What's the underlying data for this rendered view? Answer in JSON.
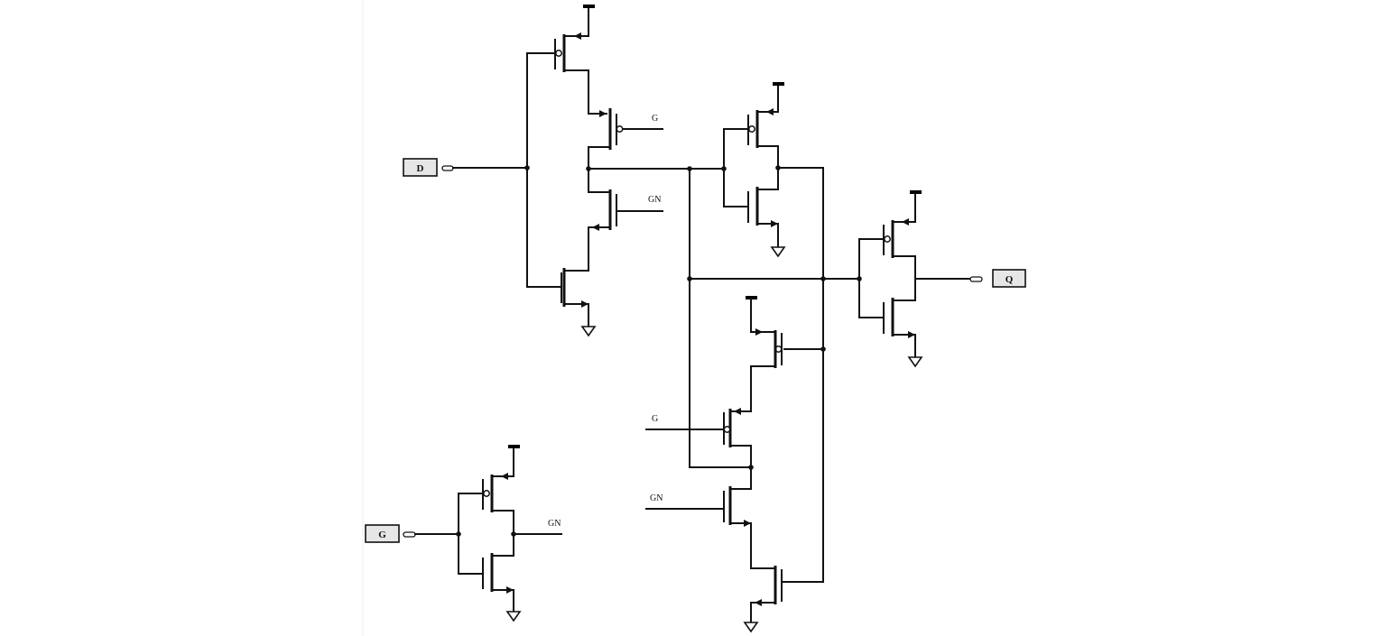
{
  "ports": {
    "d": "D",
    "q": "Q",
    "g": "G"
  },
  "net_labels": {
    "g_top": "G",
    "gn_top": "GN",
    "g_mid": "G",
    "gn_mid": "GN",
    "gn_inv": "GN"
  }
}
